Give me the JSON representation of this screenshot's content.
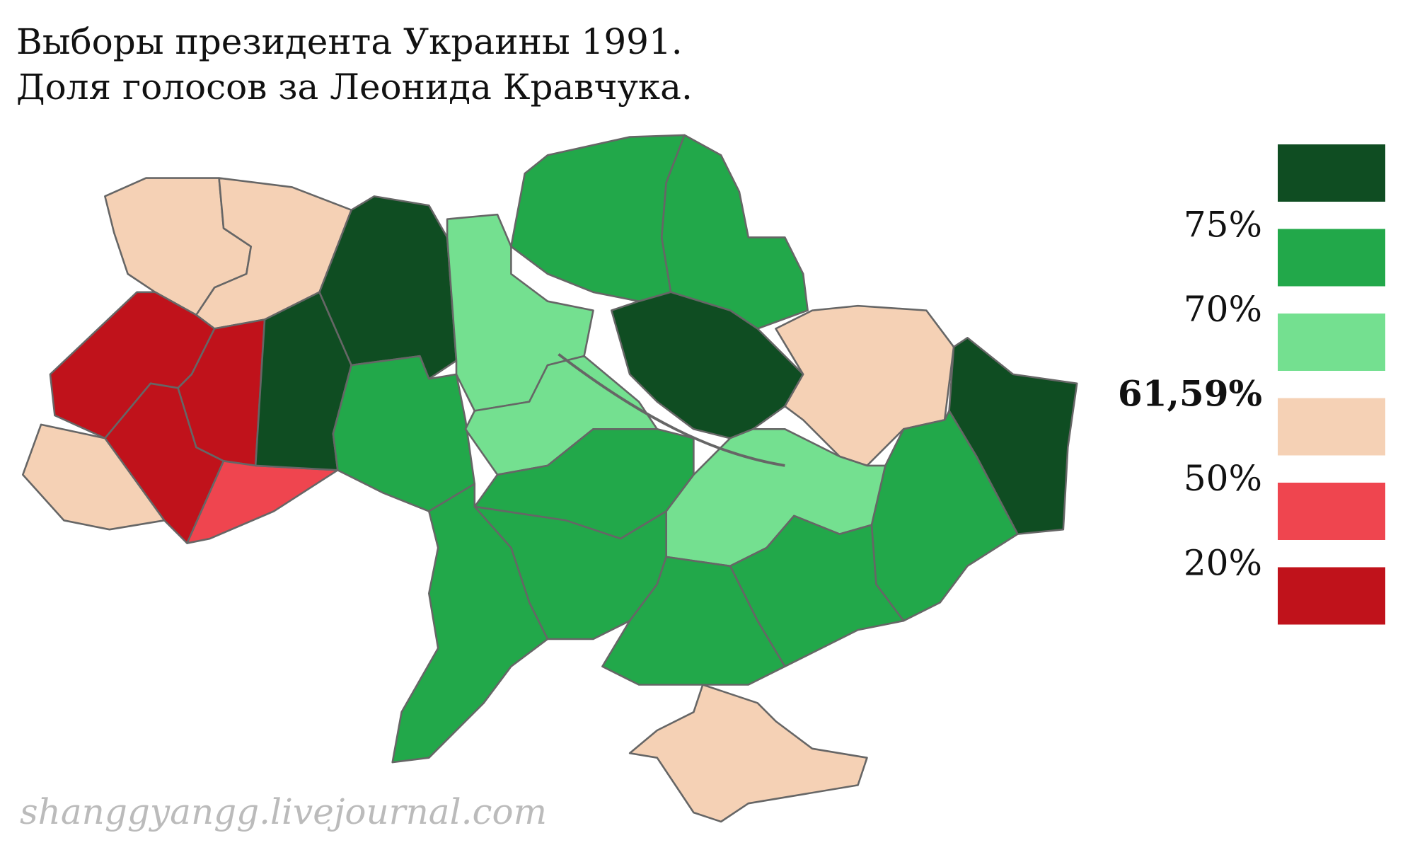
{
  "header": {
    "title": [
      "Выборы президента Украины 1991.",
      "Доля голосов за Леонида Кравчука."
    ]
  },
  "legend": {
    "colors": [
      "#0f4d22",
      "#22a84a",
      "#74e090",
      "#f5d1b5",
      "#ef454f",
      "#c0121b"
    ],
    "labels": [
      "75%",
      "70%",
      "61,59%",
      "50%",
      "20%"
    ]
  },
  "watermark": "shanggyangg.livejournal.com"
}
